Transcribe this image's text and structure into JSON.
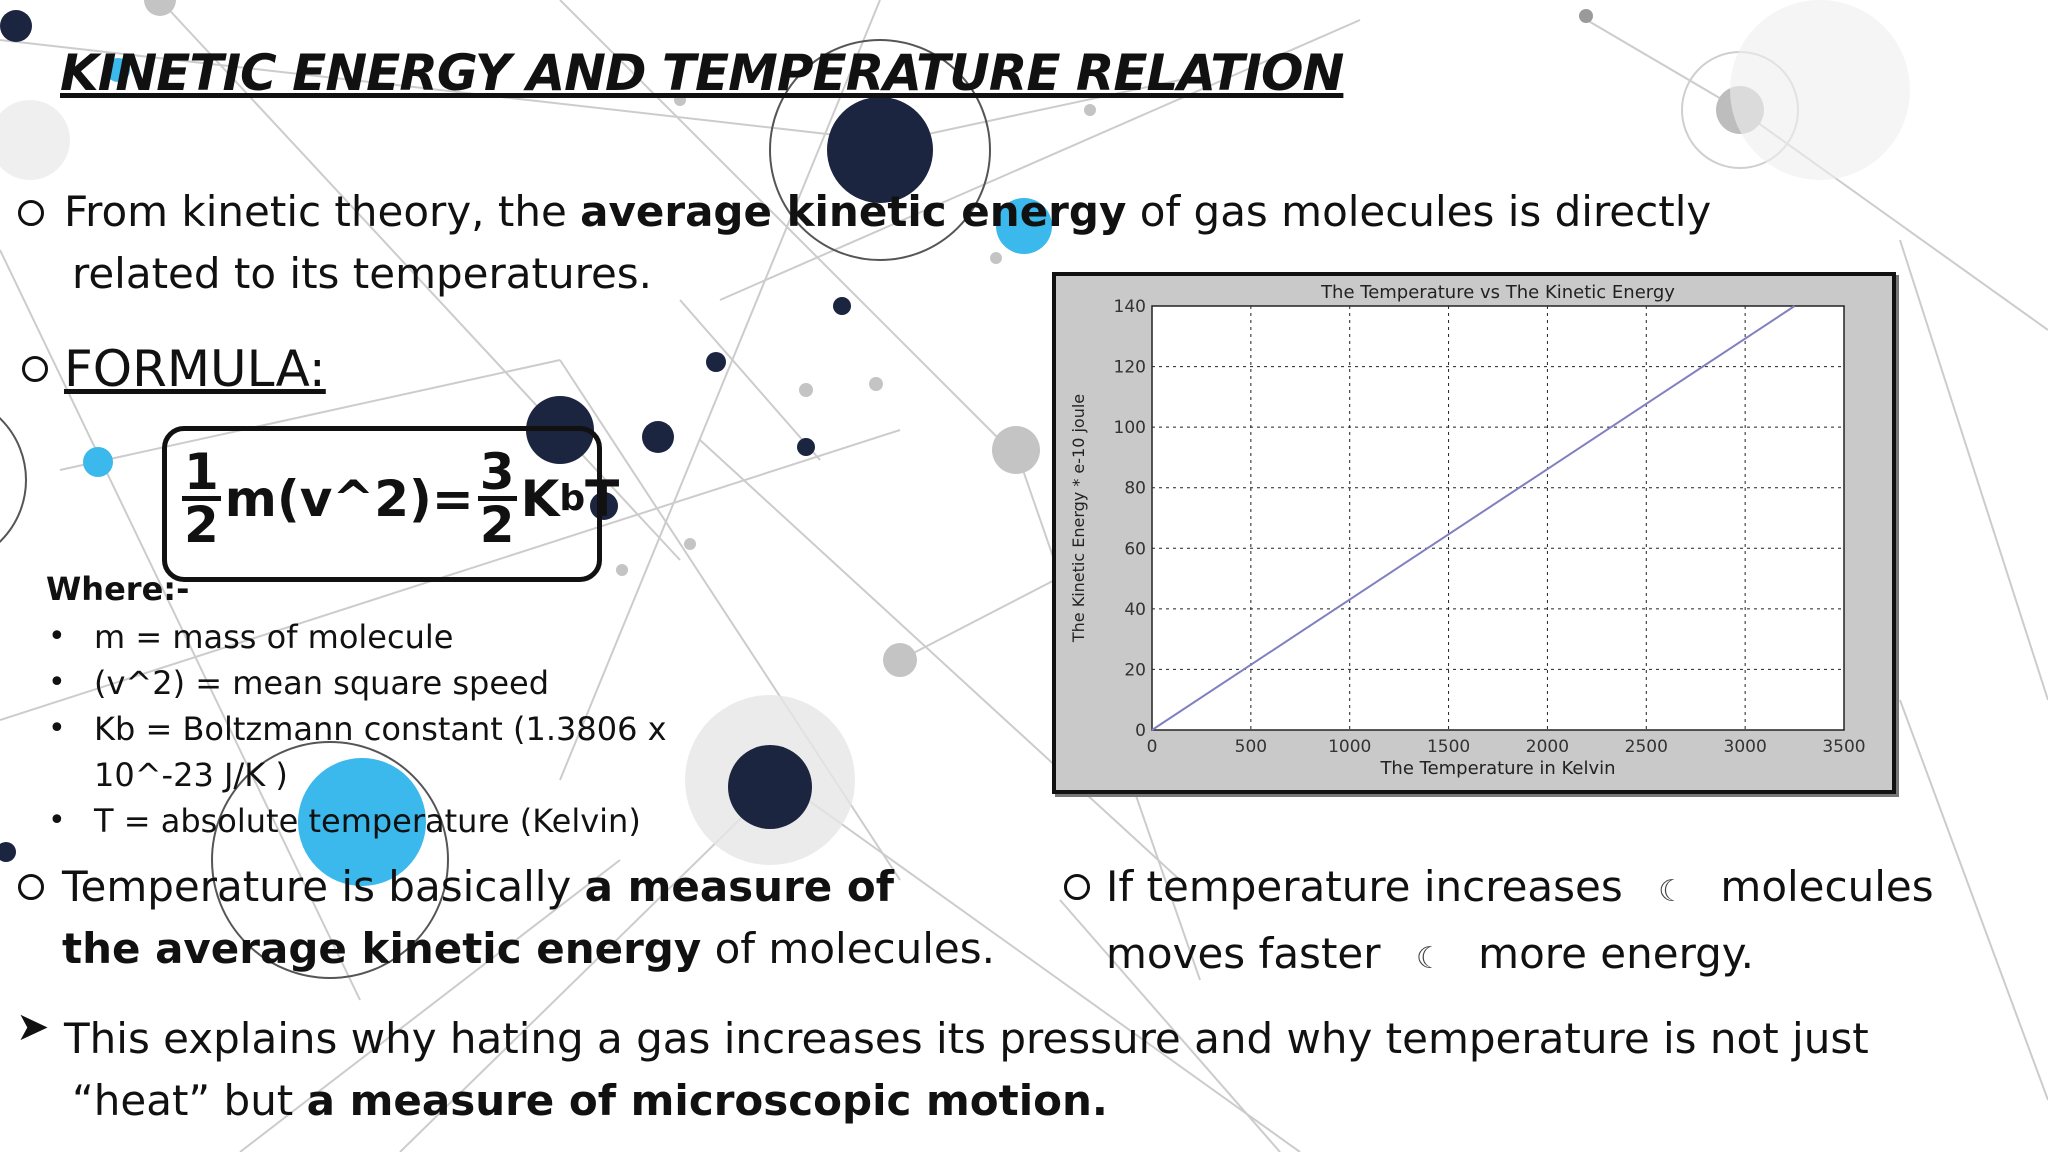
{
  "slide": {
    "title": "KINETIC ENERGY AND TEMPERATURE RELATION",
    "intro_line1_pre": "From kinetic theory, the ",
    "intro_line1_bold": "average kinetic energy",
    "intro_line1_post": " of gas molecules is directly",
    "intro_line2": "related to its temperatures.",
    "formula_label": "FORMULA:",
    "formula": {
      "frac1_num": "1",
      "frac1_den": "2",
      "middle": "m(v^2)=",
      "frac2_num": "3",
      "frac2_den": "2",
      "k": "K",
      "sub": "b",
      "t": "T"
    },
    "where_label": "Where:-",
    "variables": [
      "m = mass of molecule",
      "(v^2) = mean square speed",
      "Kb = Boltzmann constant (1.3806 x",
      "T = absolute temperature (Kelvin)"
    ],
    "variable_cont": "10^-23 J/K )",
    "temp_line1_pre": "Temperature is basically ",
    "temp_line1_bold": "a measure of",
    "temp_line2_bold": "the average kinetic energy",
    "temp_line2_post": " of molecules.",
    "if_line1_a": "If temperature increases",
    "if_line1_b": "molecules",
    "if_line2_a": "moves faster",
    "if_line2_b": "more energy.",
    "arrow_glyph": "☾",
    "explain_line1": "This explains why hating a gas increases its pressure and why temperature is not just",
    "explain_line2_pre": "“heat” but ",
    "explain_line2_bold": "a measure of microscopic motion."
  },
  "colors": {
    "accent_blue": "#3bb8ec",
    "node_dark": "#1b2540",
    "node_grey": "#c4c4c4"
  },
  "chart_data": {
    "type": "line",
    "title": "The Temperature vs The Kinetic Energy",
    "xlabel": "The Temperature in Kelvin",
    "ylabel": "The Kinetic Energy * e-10 joule",
    "xlim": [
      0,
      3500
    ],
    "ylim": [
      0,
      140
    ],
    "xticks": [
      0,
      500,
      1000,
      1500,
      2000,
      2500,
      3000,
      3500
    ],
    "yticks": [
      0,
      20,
      40,
      60,
      80,
      100,
      120,
      140
    ],
    "grid": true,
    "series": [
      {
        "x": [
          0,
          3250
        ],
        "y": [
          0,
          140
        ]
      }
    ]
  }
}
